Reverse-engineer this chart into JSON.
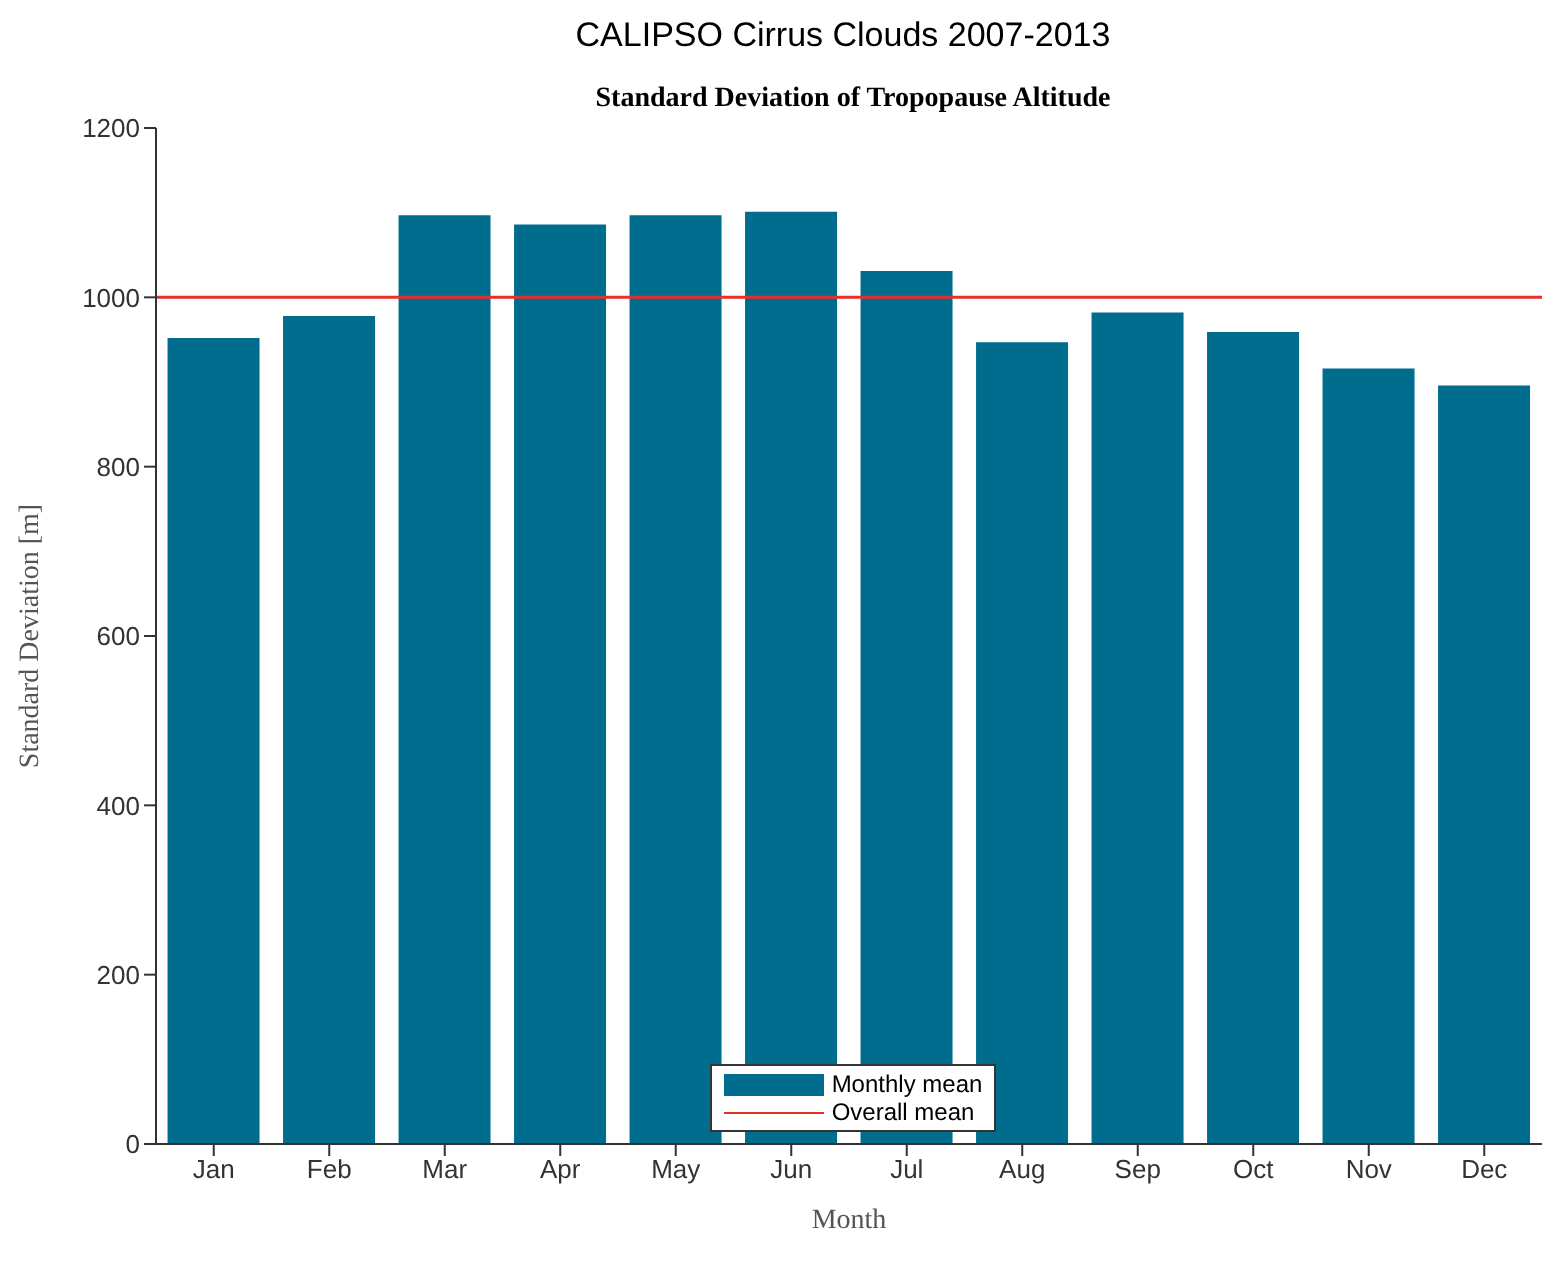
{
  "chart_data": {
    "type": "bar",
    "title": "CALIPSO Cirrus Clouds 2007-2013",
    "subtitle": "Standard Deviation of Tropopause Altitude",
    "xlabel": "Month",
    "ylabel": "Standard Deviation [m]",
    "categories": [
      "Jan",
      "Feb",
      "Mar",
      "Apr",
      "May",
      "Jun",
      "Jul",
      "Aug",
      "Sep",
      "Oct",
      "Nov",
      "Dec"
    ],
    "series": [
      {
        "name": "Monthly mean",
        "color": "#006d8f",
        "values": [
          952,
          978,
          1097,
          1086,
          1097,
          1101,
          1031,
          947,
          982,
          959,
          916,
          896
        ]
      }
    ],
    "ylim": [
      0,
      1200
    ],
    "yticks": [
      0,
      200,
      400,
      600,
      800,
      1000,
      1200
    ],
    "ref_lines": [
      {
        "axis": "y",
        "value": 1000,
        "label": "Overall mean",
        "color": "#e8302b"
      }
    ],
    "grid": false,
    "legend": "bottom"
  }
}
